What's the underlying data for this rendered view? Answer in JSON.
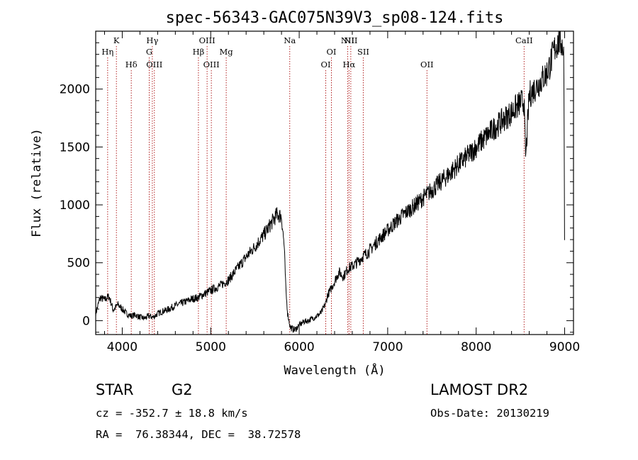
{
  "chart_data": {
    "type": "line",
    "title": "spec-56343-GAC075N39V3_sp08-124.fits",
    "xlabel": "Wavelength (Å)",
    "ylabel": "Flux (relative)",
    "xlim": [
      3700,
      9100
    ],
    "ylim": [
      -120,
      2500
    ],
    "xticks": [
      4000,
      5000,
      6000,
      7000,
      8000,
      9000
    ],
    "yticks": [
      0,
      500,
      1000,
      1500,
      2000
    ],
    "grid": false,
    "series": [
      {
        "x": [
          3700,
          3750,
          3800,
          3850,
          3900,
          3950,
          4000,
          4050,
          4100,
          4150,
          4200,
          4250,
          4300,
          4350,
          4400,
          4450,
          4500,
          4600,
          4700,
          4800,
          4860,
          4900,
          5000,
          5100,
          5200,
          5300,
          5400,
          5500,
          5600,
          5700,
          5750,
          5800,
          5830,
          5850,
          5870,
          5890,
          5900,
          5950,
          6000,
          6050,
          6100,
          6150,
          6200,
          6250,
          6300,
          6320,
          6350,
          6400,
          6450,
          6500,
          6550,
          6600,
          6650,
          6700,
          6800,
          6900,
          7000,
          7100,
          7200,
          7300,
          7400,
          7500,
          7600,
          7700,
          7800,
          7900,
          8000,
          8100,
          8200,
          8300,
          8400,
          8500,
          8540,
          8560,
          8600,
          8700,
          8800,
          8850,
          8900,
          8950,
          8990,
          9000
        ],
        "y": [
          60,
          200,
          180,
          210,
          90,
          140,
          100,
          60,
          40,
          50,
          30,
          20,
          40,
          30,
          60,
          80,
          90,
          130,
          160,
          190,
          200,
          220,
          260,
          300,
          350,
          450,
          550,
          640,
          740,
          860,
          920,
          900,
          650,
          250,
          60,
          -20,
          -60,
          -80,
          -40,
          -10,
          0,
          20,
          40,
          70,
          150,
          220,
          260,
          340,
          420,
          380,
          450,
          470,
          500,
          540,
          610,
          700,
          780,
          860,
          930,
          990,
          1060,
          1130,
          1200,
          1270,
          1350,
          1420,
          1500,
          1580,
          1660,
          1730,
          1800,
          1880,
          1900,
          1400,
          1950,
          2040,
          2140,
          2250,
          2380,
          2420,
          2350,
          580
        ]
      }
    ],
    "spectral_lines": [
      {
        "label": "Hη",
        "x": 3835,
        "row": 2
      },
      {
        "label": "K",
        "x": 3934,
        "row": 1
      },
      {
        "label": "Hδ",
        "x": 4102,
        "row": 3
      },
      {
        "label": "Hγ",
        "x": 4340,
        "row": 1
      },
      {
        "label": "G",
        "x": 4305,
        "row": 2
      },
      {
        "label": "OIII",
        "x": 4363,
        "row": 3
      },
      {
        "label": "Hβ",
        "x": 4861,
        "row": 2
      },
      {
        "label": "OIII",
        "x": 4959,
        "row": 1
      },
      {
        "label": "OIII",
        "x": 5007,
        "row": 3
      },
      {
        "label": "Mg",
        "x": 5175,
        "row": 2
      },
      {
        "label": "Na",
        "x": 5893,
        "row": 1
      },
      {
        "label": "OI",
        "x": 6300,
        "row": 3
      },
      {
        "label": "OI",
        "x": 6364,
        "row": 2
      },
      {
        "label": "NII",
        "x": 6548,
        "row": 1
      },
      {
        "label": "NII",
        "x": 6583,
        "row": 1
      },
      {
        "label": "Hα",
        "x": 6563,
        "row": 3
      },
      {
        "label": "SII",
        "x": 6724,
        "row": 2
      },
      {
        "label": "OII",
        "x": 7444,
        "row": 3
      },
      {
        "label": "CaII",
        "x": 8542,
        "row": 1
      }
    ]
  },
  "info": {
    "object_class": "STAR",
    "subclass": "G2",
    "survey": "LAMOST DR2",
    "cz": "cz = -352.7 ± 18.8 km/s",
    "obs_date": "Obs-Date: 20130219",
    "coords": "RA =  76.38344, DEC =  38.72578"
  }
}
